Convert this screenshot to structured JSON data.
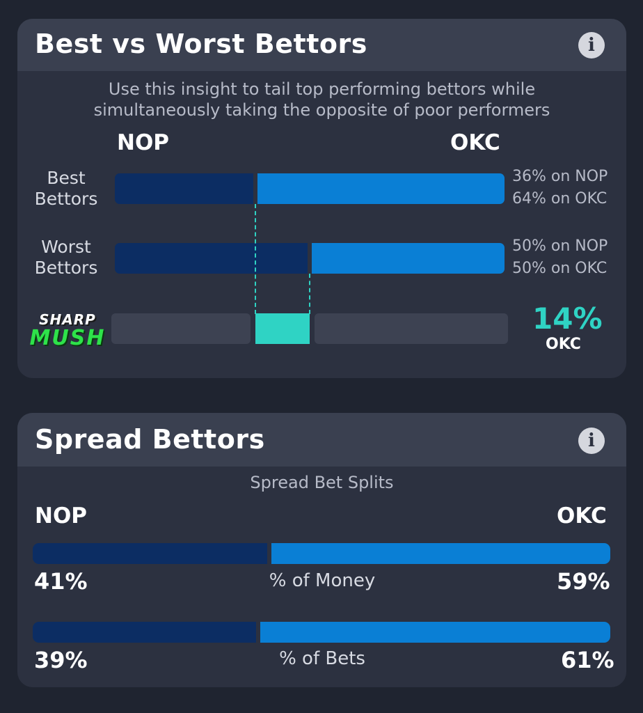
{
  "best_worst": {
    "title": "Best vs Worst Bettors",
    "subtitle_line1": "Use this insight to tail top performing bettors while",
    "subtitle_line2": "simultaneously taking the opposite of poor performers",
    "team_left": "NOP",
    "team_right": "OKC",
    "rows": [
      {
        "label_line1": "Best",
        "label_line2": "Bettors",
        "nop_pct": 36,
        "okc_pct": 64,
        "nop_text": "36% on NOP",
        "okc_text": "64% on OKC"
      },
      {
        "label_line1": "Worst",
        "label_line2": "Bettors",
        "nop_pct": 50,
        "okc_pct": 50,
        "nop_text": "50% on NOP",
        "okc_text": "50% on OKC"
      }
    ],
    "logo_line1": "SHARP",
    "logo_line2": "MUSH",
    "edge_pct": "14%",
    "edge_team": "OKC",
    "colors": {
      "nop_dark": "#0c2d63",
      "okc_light": "#0a7fd5",
      "edge_teal": "#2fd3c4",
      "logo_green": "#2ee24a"
    }
  },
  "spread": {
    "title": "Spread Bettors",
    "section_label": "Spread Bet Splits",
    "team_left": "NOP",
    "team_right": "OKC",
    "splits": [
      {
        "label": "% of Money",
        "nop_pct": 41,
        "okc_pct": 59,
        "nop_text": "41%",
        "okc_text": "59%"
      },
      {
        "label": "% of Bets",
        "nop_pct": 39,
        "okc_pct": 61,
        "nop_text": "39%",
        "okc_text": "61%"
      }
    ]
  },
  "icons": {
    "info": "info-icon"
  }
}
